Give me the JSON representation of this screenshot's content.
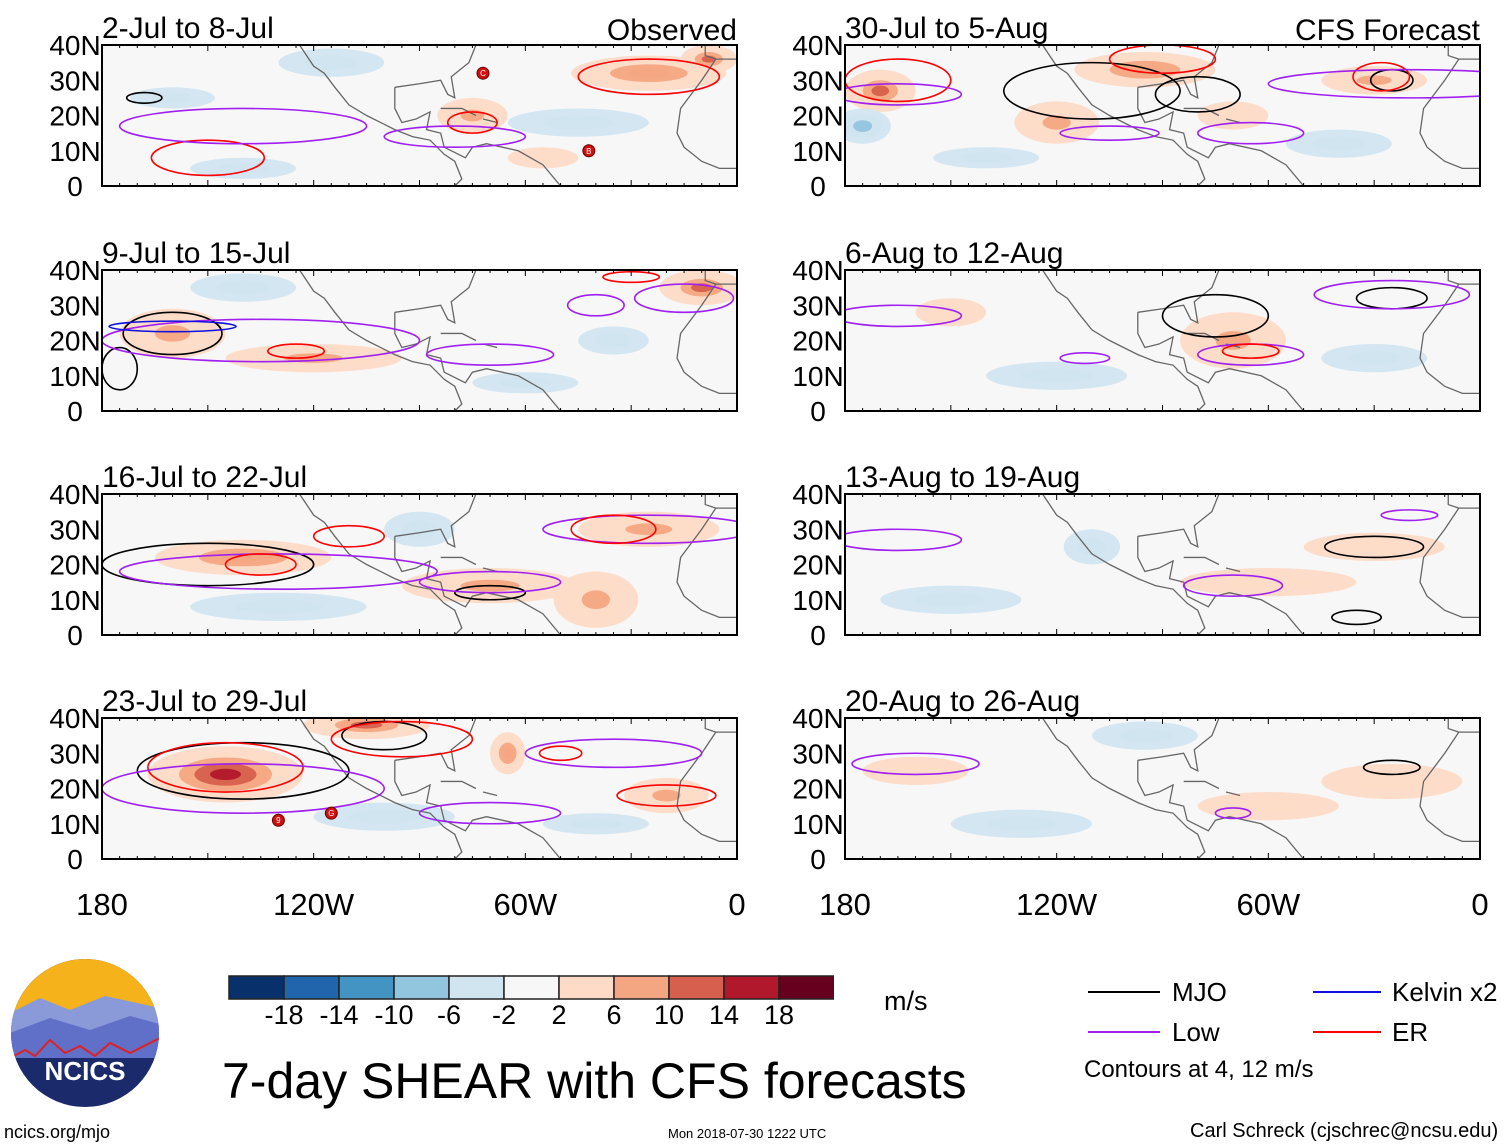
{
  "chart_data": {
    "type": "heatmap",
    "title": "7-day SHEAR with CFS forecasts",
    "units": "m/s",
    "xticks": [
      "180",
      "120W",
      "60W",
      "0"
    ],
    "yticks": [
      "40N",
      "30N",
      "20N",
      "10N",
      "0"
    ],
    "xlim": [
      -180,
      0
    ],
    "ylim": [
      0,
      40
    ],
    "colorbar": {
      "labels": [
        "-18",
        "-14",
        "-10",
        "-6",
        "-2",
        "2",
        "6",
        "10",
        "14",
        "18"
      ],
      "colors": [
        "#08306b",
        "#2166ac",
        "#4393c3",
        "#92c5de",
        "#d1e5f0",
        "#f7f7f7",
        "#fddbc7",
        "#f4a582",
        "#d6604d",
        "#b2182b",
        "#67001f"
      ]
    },
    "legend": {
      "items": [
        {
          "label": "MJO",
          "color": "#000000"
        },
        {
          "label": "Kelvin x2",
          "color": "#0000ff"
        },
        {
          "label": "Low",
          "color": "#a020f0"
        },
        {
          "label": "ER",
          "color": "#ff0000"
        }
      ],
      "note": "Contours at 4, 12 m/s"
    },
    "colors": {
      "MJO": "#000000",
      "Kelvin": "#1010e0",
      "Low": "#a020f0",
      "ER": "#ff0000"
    },
    "panels": [
      {
        "title": "2-Jul to 8-Jul",
        "label": "Observed",
        "shade": [
          [
            -25,
            32,
            22,
            5,
            12
          ],
          [
            -45,
            18,
            20,
            4,
            -6
          ],
          [
            -115,
            35,
            15,
            4,
            -6
          ],
          [
            -75,
            20,
            10,
            5,
            8
          ],
          [
            -140,
            5,
            15,
            3,
            -4
          ],
          [
            -160,
            25,
            12,
            3,
            -3
          ],
          [
            -55,
            8,
            10,
            3,
            4
          ],
          [
            -8,
            36,
            8,
            4,
            14
          ]
        ],
        "contours": [
          [
            "ER",
            -25,
            31,
            20,
            5
          ],
          [
            "ER",
            -150,
            8,
            16,
            5
          ],
          [
            "ER",
            -75,
            18,
            7,
            3
          ],
          [
            "Low",
            -140,
            17,
            35,
            5
          ],
          [
            "Low",
            -80,
            14,
            20,
            3
          ],
          [
            "MJO",
            -168,
            25,
            5,
            1.5
          ]
        ],
        "storms": [
          [
            -72,
            32,
            "C"
          ],
          [
            -42,
            10,
            "B"
          ]
        ]
      },
      {
        "title": "30-Jul to 5-Aug",
        "label": "CFS Forecast",
        "shade": [
          [
            -170,
            27,
            10,
            6,
            14
          ],
          [
            -95,
            33,
            20,
            5,
            12
          ],
          [
            -175,
            17,
            8,
            5,
            -10
          ],
          [
            -120,
            18,
            12,
            6,
            8
          ],
          [
            -70,
            20,
            10,
            4,
            6
          ],
          [
            -30,
            30,
            15,
            4,
            10
          ],
          [
            -140,
            8,
            15,
            3,
            -4
          ],
          [
            -40,
            12,
            15,
            4,
            -4
          ]
        ],
        "contours": [
          [
            "MJO",
            -110,
            27,
            25,
            8
          ],
          [
            "MJO",
            -80,
            26,
            12,
            5
          ],
          [
            "MJO",
            -25,
            30,
            6,
            3
          ],
          [
            "ER",
            -165,
            30,
            15,
            6
          ],
          [
            "ER",
            -90,
            36,
            15,
            4
          ],
          [
            "ER",
            -28,
            31,
            8,
            4
          ],
          [
            "Low",
            -20,
            29,
            40,
            4
          ],
          [
            "Low",
            -105,
            15,
            14,
            2
          ],
          [
            "Low",
            -165,
            26,
            18,
            3
          ],
          [
            "Low",
            -65,
            15,
            15,
            3
          ]
        ],
        "storms": []
      },
      {
        "title": "9-Jul to 15-Jul",
        "label": "",
        "shade": [
          [
            -160,
            22,
            15,
            7,
            10
          ],
          [
            -120,
            15,
            25,
            4,
            8
          ],
          [
            -10,
            35,
            12,
            5,
            14
          ],
          [
            -60,
            8,
            15,
            3,
            -6
          ],
          [
            -140,
            35,
            15,
            4,
            -4
          ],
          [
            -35,
            20,
            10,
            4,
            -4
          ]
        ],
        "contours": [
          [
            "MJO",
            -160,
            22,
            14,
            6
          ],
          [
            "MJO",
            -175,
            12,
            5,
            6
          ],
          [
            "Low",
            -135,
            20,
            45,
            6
          ],
          [
            "Low",
            -70,
            16,
            18,
            3
          ],
          [
            "Low",
            -40,
            30,
            8,
            3
          ],
          [
            "Low",
            -15,
            32,
            14,
            4
          ],
          [
            "Kelvin",
            -160,
            24,
            18,
            1.5
          ],
          [
            "ER",
            -125,
            17,
            8,
            2
          ],
          [
            "ER",
            -30,
            38,
            8,
            1.5
          ]
        ],
        "storms": []
      },
      {
        "title": "6-Aug to 12-Aug",
        "label": "",
        "shade": [
          [
            -70,
            20,
            15,
            8,
            10
          ],
          [
            -150,
            28,
            10,
            4,
            3
          ],
          [
            -120,
            10,
            20,
            4,
            -3
          ],
          [
            -30,
            15,
            15,
            4,
            -3
          ]
        ],
        "contours": [
          [
            "MJO",
            -75,
            27,
            15,
            6
          ],
          [
            "MJO",
            -25,
            32,
            10,
            3
          ],
          [
            "Low",
            -165,
            27,
            18,
            3
          ],
          [
            "Low",
            -65,
            16,
            15,
            3
          ],
          [
            "Low",
            -25,
            33,
            22,
            4
          ],
          [
            "Low",
            -112,
            15,
            7,
            1.5
          ],
          [
            "ER",
            -65,
            17,
            8,
            2
          ]
        ],
        "storms": []
      },
      {
        "title": "16-Jul to 22-Jul",
        "label": "",
        "shade": [
          [
            -140,
            22,
            25,
            5,
            12
          ],
          [
            -70,
            14,
            25,
            5,
            10
          ],
          [
            -40,
            10,
            12,
            8,
            8
          ],
          [
            -25,
            30,
            20,
            5,
            10
          ],
          [
            -130,
            8,
            25,
            4,
            -4
          ],
          [
            -90,
            30,
            10,
            5,
            -4
          ]
        ],
        "contours": [
          [
            "MJO",
            -150,
            20,
            30,
            6
          ],
          [
            "MJO",
            -70,
            12,
            10,
            2
          ],
          [
            "Low",
            -130,
            18,
            45,
            5
          ],
          [
            "Low",
            -70,
            15,
            20,
            3
          ],
          [
            "Low",
            -25,
            30,
            30,
            4
          ],
          [
            "ER",
            -135,
            20,
            10,
            3
          ],
          [
            "ER",
            -110,
            28,
            10,
            3
          ],
          [
            "ER",
            -35,
            30,
            12,
            4
          ]
        ],
        "storms": []
      },
      {
        "title": "13-Aug to 19-Aug",
        "label": "",
        "shade": [
          [
            -110,
            25,
            8,
            5,
            -6
          ],
          [
            -60,
            15,
            25,
            4,
            4
          ],
          [
            -30,
            25,
            20,
            4,
            4
          ],
          [
            -150,
            10,
            20,
            4,
            -3
          ]
        ],
        "contours": [
          [
            "MJO",
            -30,
            25,
            14,
            3
          ],
          [
            "MJO",
            -35,
            5,
            7,
            2
          ],
          [
            "Low",
            -165,
            27,
            18,
            3
          ],
          [
            "Low",
            -70,
            14,
            14,
            3
          ],
          [
            "Low",
            -20,
            34,
            8,
            1.5
          ]
        ],
        "storms": []
      },
      {
        "title": "23-Jul to 29-Jul",
        "label": "",
        "shade": [
          [
            -145,
            24,
            22,
            8,
            18
          ],
          [
            -105,
            38,
            18,
            4,
            14
          ],
          [
            -65,
            30,
            5,
            6,
            12
          ],
          [
            -20,
            18,
            12,
            5,
            10
          ],
          [
            -100,
            12,
            20,
            4,
            -4
          ],
          [
            -40,
            10,
            15,
            3,
            -3
          ]
        ],
        "contours": [
          [
            "MJO",
            -140,
            25,
            30,
            8
          ],
          [
            "MJO",
            -100,
            35,
            12,
            4
          ],
          [
            "ER",
            -145,
            26,
            22,
            7
          ],
          [
            "ER",
            -95,
            34,
            20,
            5
          ],
          [
            "ER",
            -20,
            18,
            14,
            3
          ],
          [
            "ER",
            -50,
            30,
            6,
            2
          ],
          [
            "Low",
            -140,
            20,
            40,
            7
          ],
          [
            "Low",
            -70,
            13,
            20,
            3
          ],
          [
            "Low",
            -35,
            30,
            25,
            4
          ]
        ],
        "storms": [
          [
            -130,
            11,
            "9"
          ],
          [
            -115,
            13,
            "G"
          ]
        ]
      },
      {
        "title": "20-Aug to 26-Aug",
        "label": "",
        "shade": [
          [
            -95,
            35,
            15,
            4,
            -6
          ],
          [
            -60,
            15,
            20,
            4,
            3
          ],
          [
            -25,
            22,
            20,
            5,
            3
          ],
          [
            -160,
            25,
            15,
            4,
            3
          ],
          [
            -130,
            10,
            20,
            4,
            -3
          ]
        ],
        "contours": [
          [
            "MJO",
            -25,
            26,
            8,
            2
          ],
          [
            "Low",
            -160,
            27,
            18,
            3
          ],
          [
            "Low",
            -70,
            13,
            5,
            1.5
          ]
        ],
        "storms": []
      }
    ]
  },
  "branding": {
    "logo_text": "NCICS",
    "site": "ncics.org/mjo",
    "timestamp": "Mon 2018-07-30 1222 UTC",
    "author": "Carl Schreck (cjschrec@ncsu.edu)"
  }
}
